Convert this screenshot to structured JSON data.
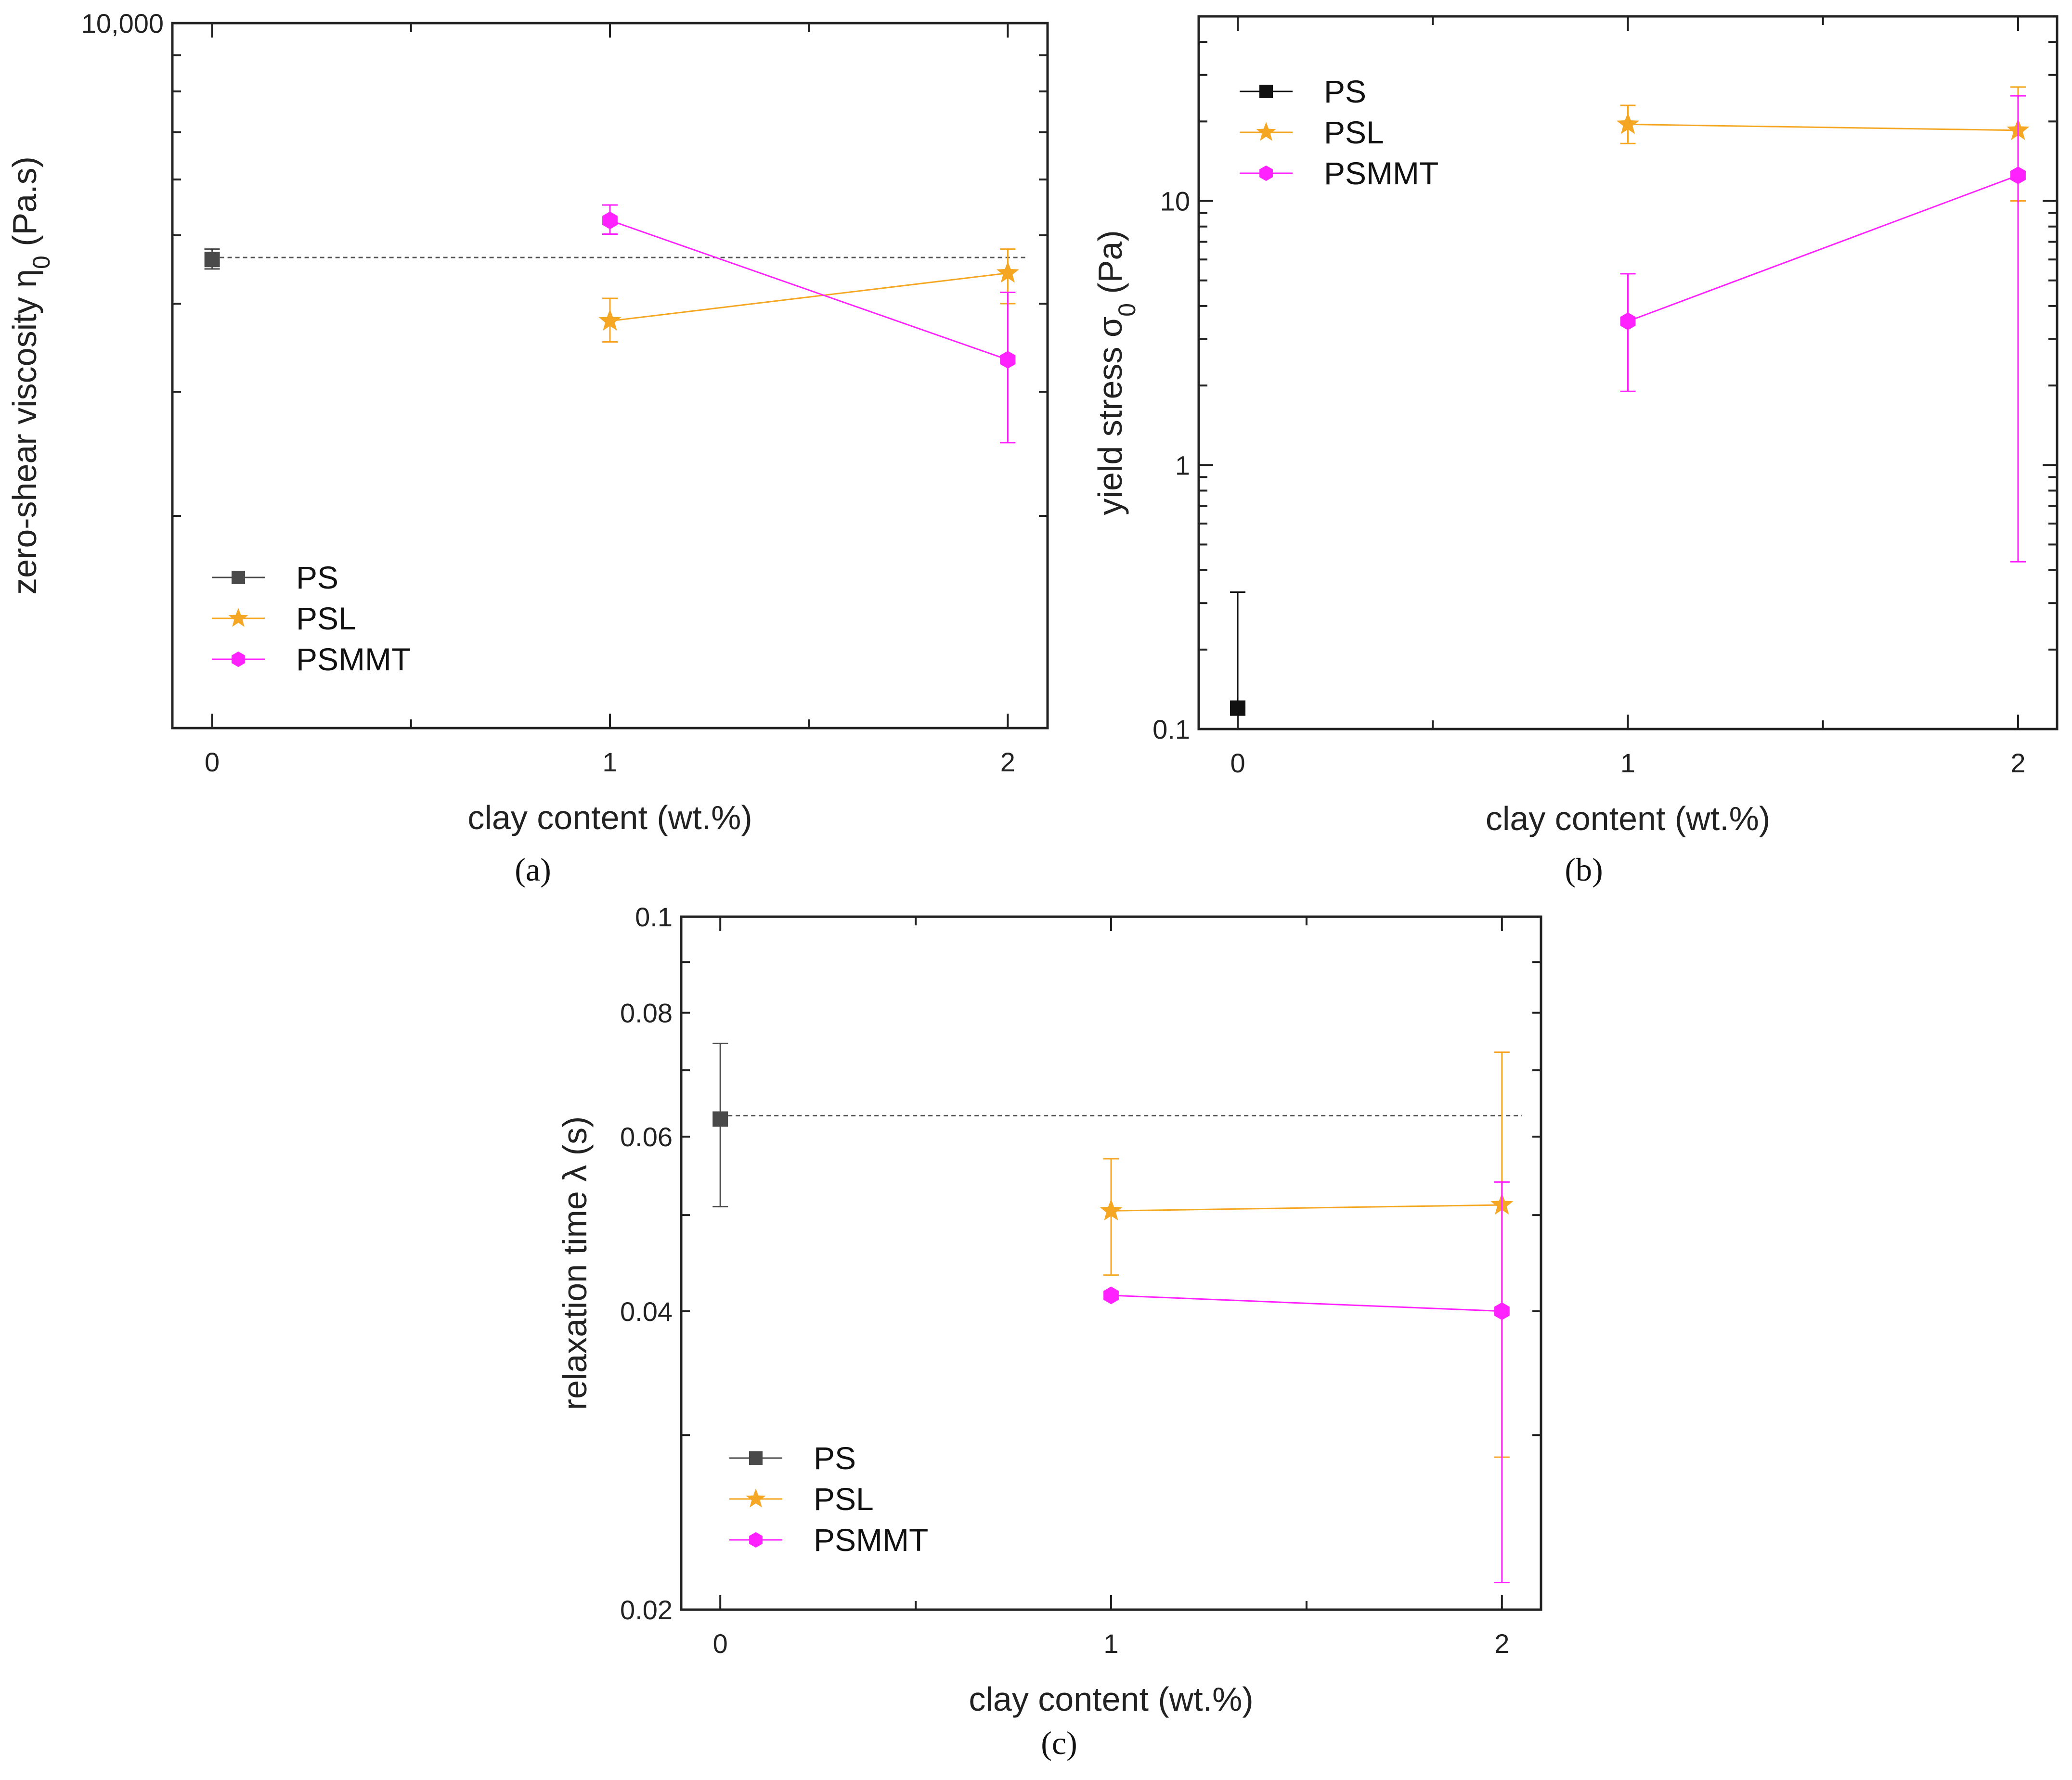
{
  "chart_data": [
    {
      "type": "scatter",
      "panel_label": "(a)",
      "xlabel": "clay content (wt.%)",
      "ylabel": "zero-shear viscosity η",
      "ylabel_sub": "0",
      "ylabel_unit": " (Pa.s)",
      "y_scale": "log",
      "xlim": [
        -0.1,
        2.1
      ],
      "ylim": [
        1000,
        10000
      ],
      "xticks": [
        0,
        1,
        2
      ],
      "xtick_labels": [
        "0",
        "1",
        "2"
      ],
      "yticks": [
        10000
      ],
      "ytick_labels": [
        "10,000"
      ],
      "legend_position": "bottom-left",
      "series": [
        {
          "name": "PS",
          "color": "#4a4a4a",
          "marker": "square",
          "x": [
            0
          ],
          "y": [
            4620
          ],
          "err_low": [
            4480
          ],
          "err_high": [
            4780
          ],
          "reference_line": 4650
        },
        {
          "name": "PSL",
          "color": "#f5a623",
          "marker": "star",
          "x": [
            1,
            2
          ],
          "y": [
            3780,
            4420
          ],
          "err_low": [
            3530,
            4000
          ],
          "err_high": [
            4070,
            4780
          ]
        },
        {
          "name": "PSMMT",
          "color": "#ff22ff",
          "marker": "hexagon",
          "x": [
            1,
            2
          ],
          "y": [
            5250,
            3330
          ],
          "err_low": [
            5020,
            2540
          ],
          "err_high": [
            5520,
            4150
          ]
        }
      ]
    },
    {
      "type": "scatter",
      "panel_label": "(b)",
      "xlabel": "clay content (wt.%)",
      "ylabel": "yield stress σ",
      "ylabel_sub": "0",
      "ylabel_unit": " (Pa)",
      "y_scale": "log",
      "xlim": [
        -0.1,
        2.1
      ],
      "ylim": [
        0.1,
        50
      ],
      "xticks": [
        0,
        1,
        2
      ],
      "xtick_labels": [
        "0",
        "1",
        "2"
      ],
      "yticks": [
        0.1,
        1,
        10
      ],
      "ytick_labels": [
        "0.1",
        "1",
        "10"
      ],
      "legend_position": "top-left",
      "series": [
        {
          "name": "PS",
          "color": "#111111",
          "marker": "square",
          "x": [
            0
          ],
          "y": [
            0.12
          ],
          "err_low": [
            0.12
          ],
          "err_high": [
            0.33
          ]
        },
        {
          "name": "PSL",
          "color": "#f5a623",
          "marker": "star",
          "x": [
            1,
            2
          ],
          "y": [
            19.5,
            18.5
          ],
          "err_low": [
            16.5,
            10
          ],
          "err_high": [
            23,
            27
          ]
        },
        {
          "name": "PSMMT",
          "color": "#ff22ff",
          "marker": "hexagon",
          "x": [
            1,
            2
          ],
          "y": [
            3.5,
            12.5
          ],
          "err_low": [
            1.9,
            0.43
          ],
          "err_high": [
            5.3,
            25
          ]
        }
      ]
    },
    {
      "type": "scatter",
      "panel_label": "(c)",
      "xlabel": "clay content (wt.%)",
      "ylabel": "relaxation time λ (s)",
      "ylabel_sub": "",
      "ylabel_unit": "",
      "y_scale": "log",
      "xlim": [
        -0.1,
        2.1
      ],
      "ylim": [
        0.02,
        0.1
      ],
      "xticks": [
        0,
        1,
        2
      ],
      "xtick_labels": [
        "0",
        "1",
        "2"
      ],
      "yticks": [
        0.02,
        0.04,
        0.06,
        0.08,
        0.1
      ],
      "ytick_labels": [
        "0.02",
        "0.04",
        "0.06",
        "0.08",
        "0.1"
      ],
      "legend_position": "bottom-left",
      "series": [
        {
          "name": "PS",
          "color": "#4a4a4a",
          "marker": "square",
          "x": [
            0
          ],
          "y": [
            0.0625
          ],
          "err_low": [
            0.051
          ],
          "err_high": [
            0.0745
          ],
          "reference_line": 0.063
        },
        {
          "name": "PSL",
          "color": "#f5a623",
          "marker": "star",
          "x": [
            1,
            2
          ],
          "y": [
            0.0505,
            0.0512
          ],
          "err_low": [
            0.0435,
            0.0285
          ],
          "err_high": [
            0.057,
            0.073
          ]
        },
        {
          "name": "PSMMT",
          "color": "#ff22ff",
          "marker": "hexagon",
          "x": [
            1,
            2
          ],
          "y": [
            0.0415,
            0.04
          ],
          "err_low": [
            0.0415,
            0.0213
          ],
          "err_high": [
            0.0415,
            0.054
          ]
        }
      ]
    }
  ]
}
